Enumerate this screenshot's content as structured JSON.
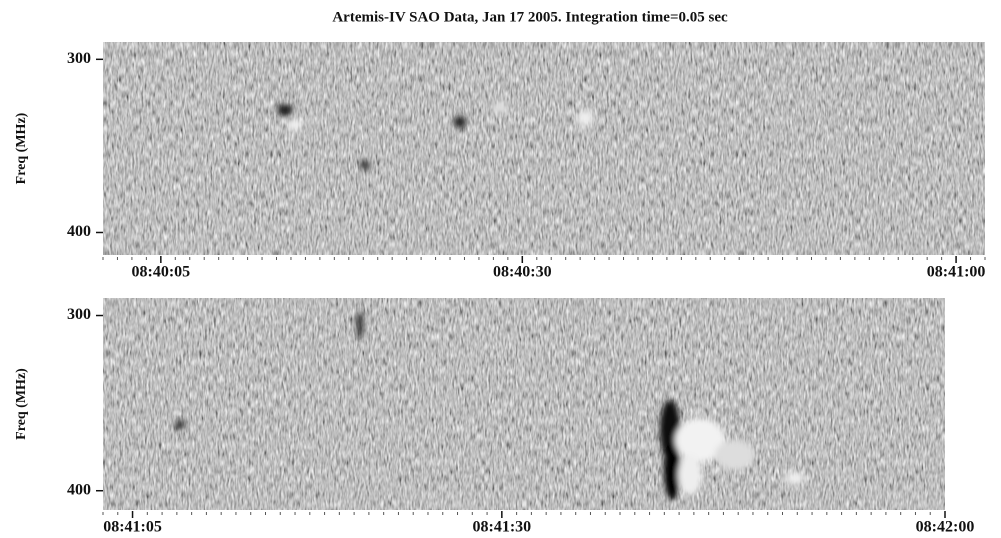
{
  "chart_data": [
    {
      "type": "spectrogram",
      "title": "Artemis-IV SAO Data, Jan 17 2005. Integration time=0.05 sec",
      "ylabel": "Freq (MHz)",
      "ylim": [
        290,
        413
      ],
      "yticks": [
        300,
        400
      ],
      "xlim": [
        "08:40:01",
        "08:41:02"
      ],
      "xticks": [
        "08:40:05",
        "08:40:30",
        "08:41:00"
      ]
    },
    {
      "type": "spectrogram",
      "ylabel": "Freq (MHz)",
      "ylim": [
        290,
        411
      ],
      "yticks": [
        300,
        400
      ],
      "xlim": [
        "08:41:03",
        "08:42:00"
      ],
      "xticks": [
        "08:41:05",
        "08:41:30",
        "08:42:00"
      ]
    }
  ]
}
